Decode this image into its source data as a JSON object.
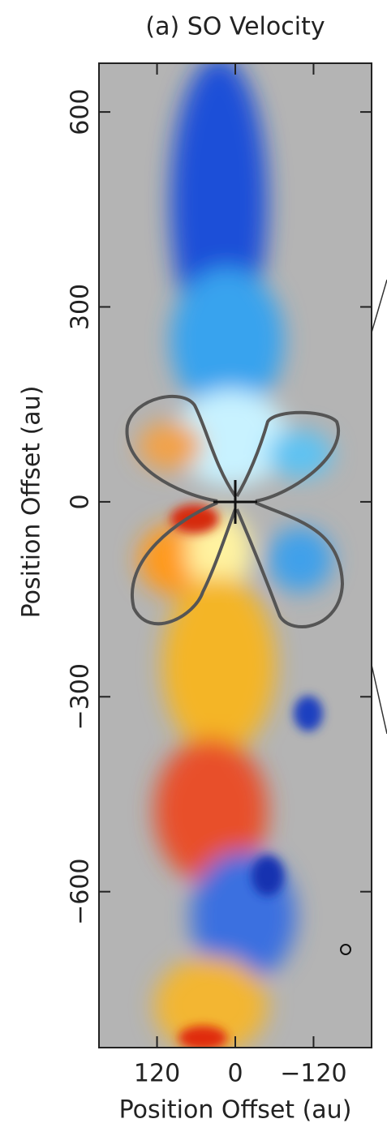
{
  "chart_data": {
    "type": "image",
    "title": "(a) SO Velocity",
    "x_label": "Position Offset (au)",
    "y_label": "Position Offset (au)",
    "xlim": [
      209,
      -209
    ],
    "ylim": [
      -840,
      675
    ],
    "xticks": [
      120,
      0,
      {
        "value": -120,
        "label": "−120"
      }
    ],
    "yticks": [
      600,
      300,
      0,
      {
        "value": -300,
        "label": "−300"
      },
      {
        "value": -600,
        "label": "−600"
      }
    ]
  }
}
